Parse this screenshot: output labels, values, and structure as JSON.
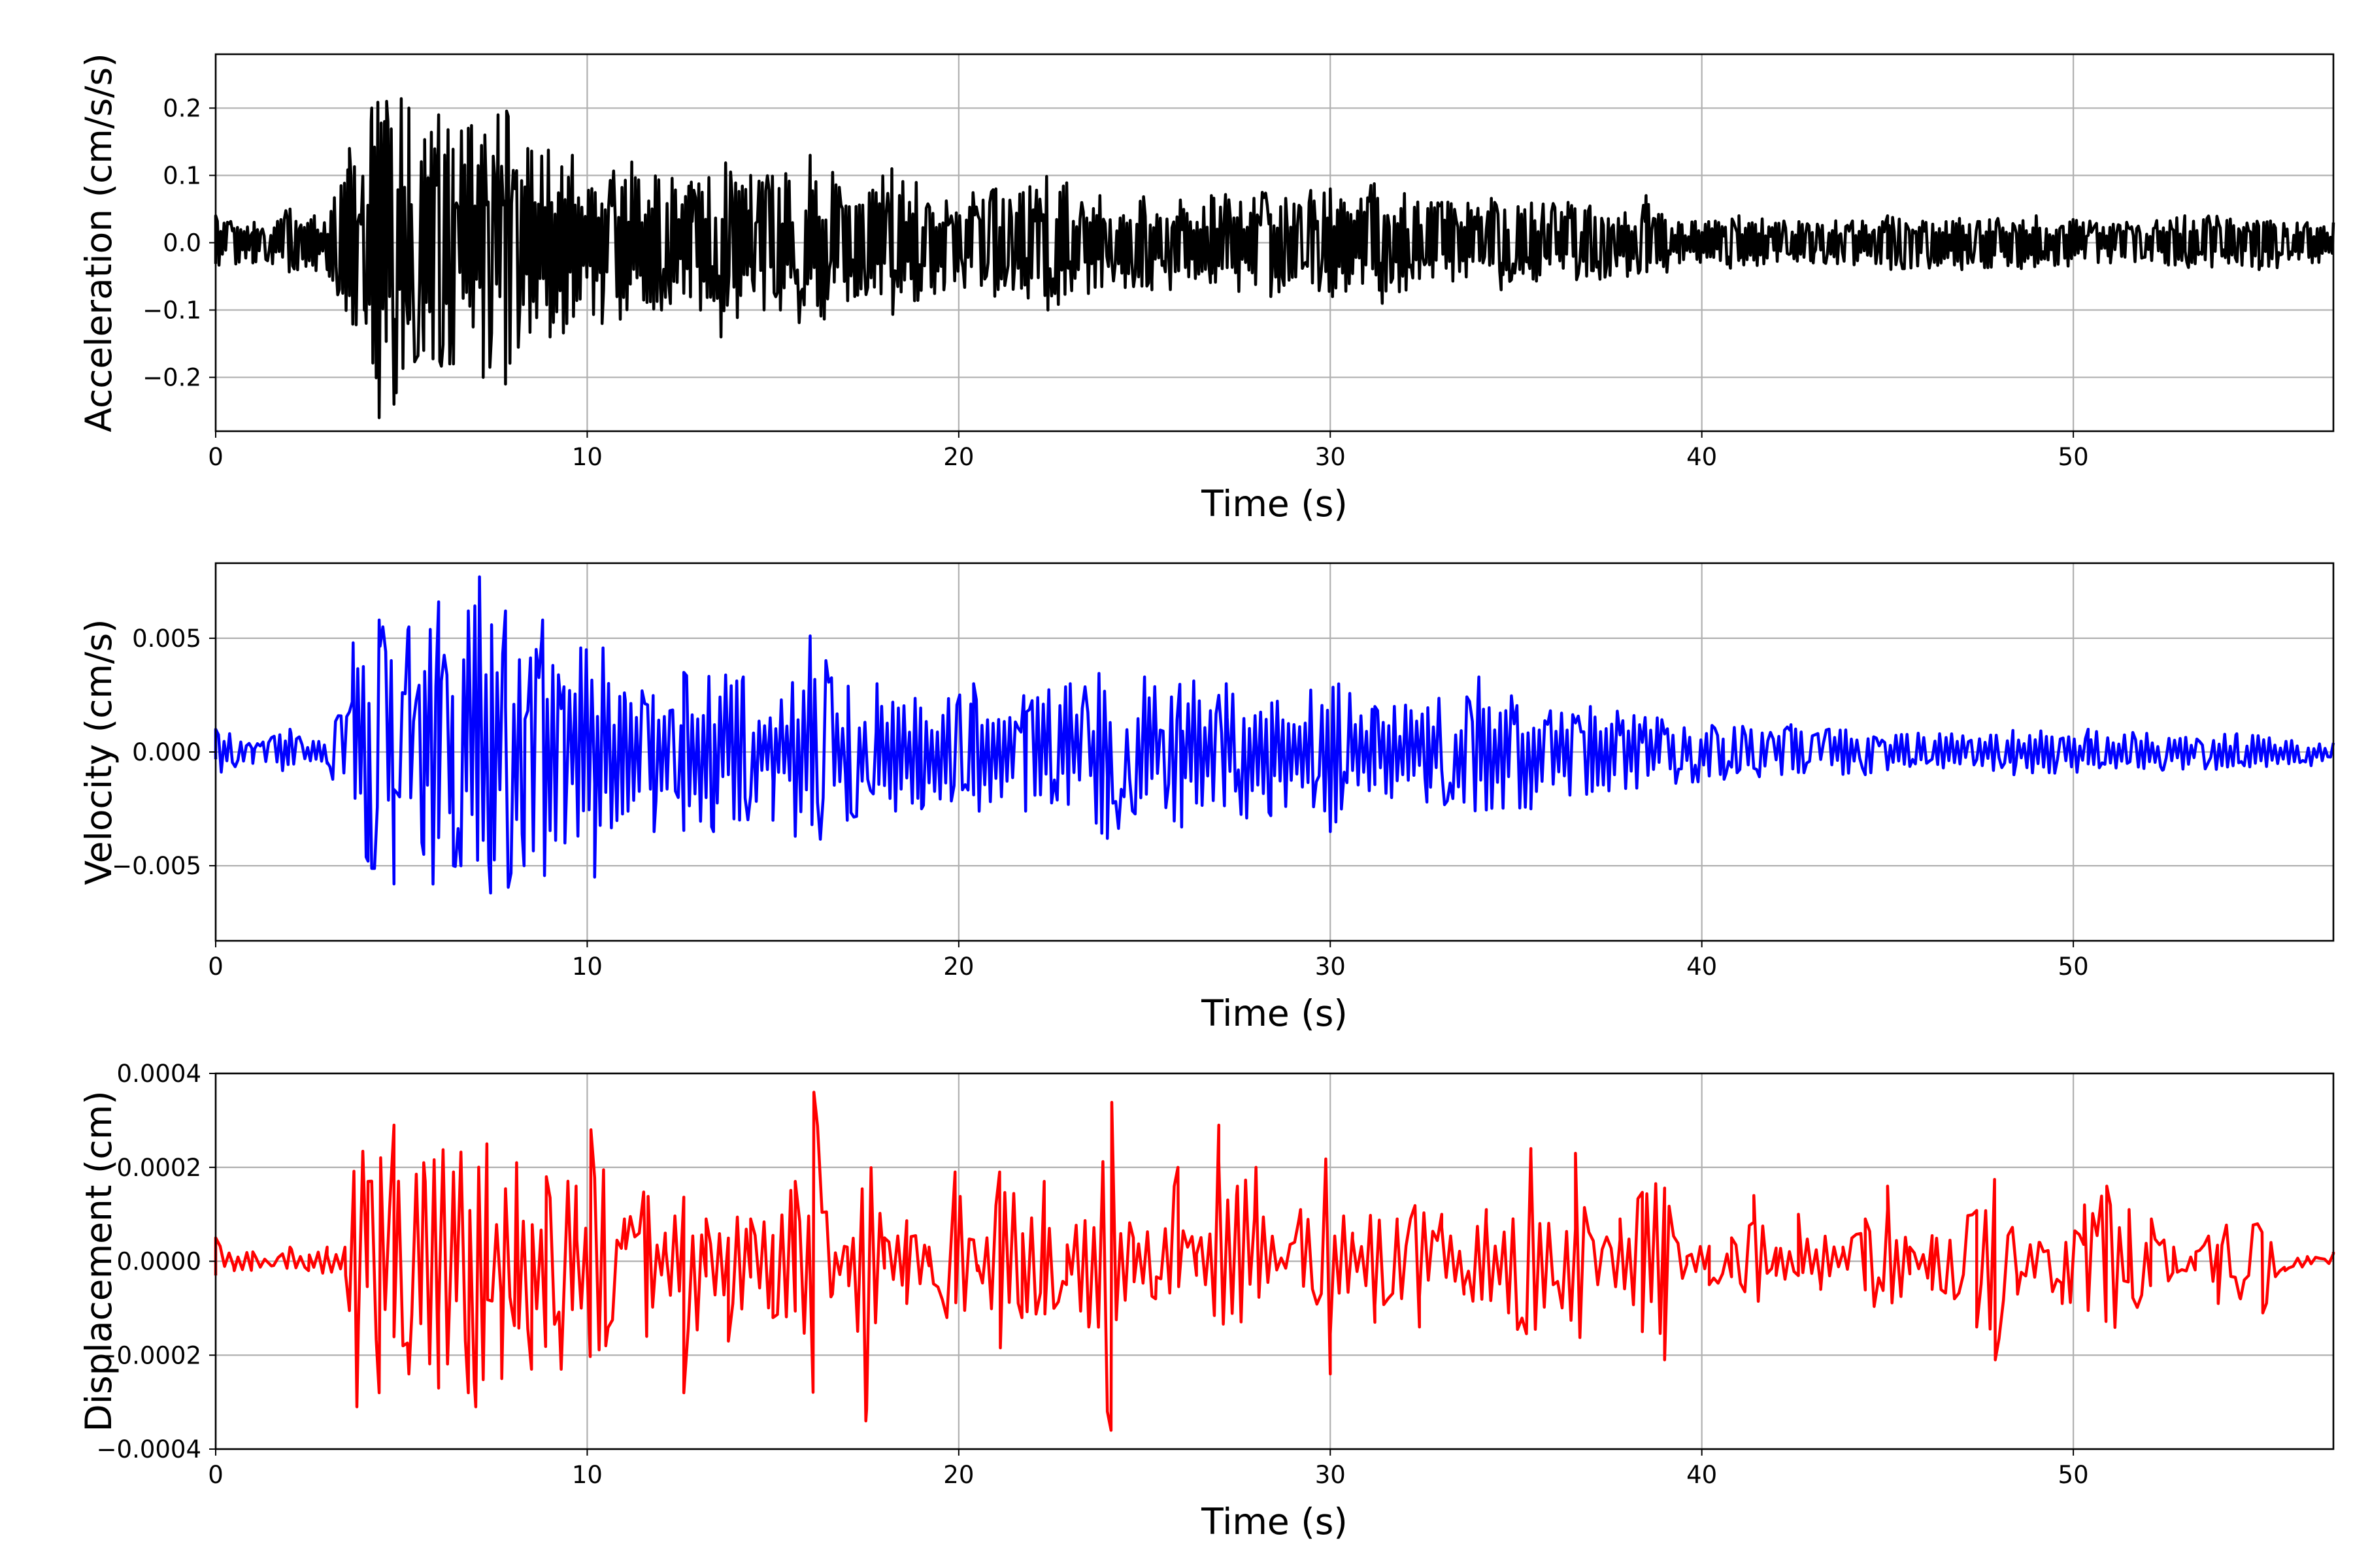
{
  "chart_data": [
    {
      "type": "line",
      "xlabel": "Time (s)",
      "ylabel": "Acceleration (cm/s/s)",
      "xlim": [
        0,
        57
      ],
      "ylim": [
        -0.28,
        0.28
      ],
      "x_ticks": [
        0,
        10,
        20,
        30,
        40,
        50
      ],
      "x_tick_labels": [
        "0",
        "10",
        "20",
        "30",
        "40",
        "50"
      ],
      "y_ticks": [
        -0.2,
        -0.1,
        0.0,
        0.1,
        0.2
      ],
      "y_tick_labels": [
        "−0.2",
        "−0.1",
        "0.0",
        "0.1",
        "0.2"
      ],
      "grid": true,
      "series": [
        {
          "color": "#000000",
          "x": [
            0,
            1,
            2,
            3,
            3.6,
            4,
            4.2,
            4.4,
            4.6,
            4.8,
            5.2,
            5.6,
            6.0,
            6.4,
            6.8,
            7.2,
            7.6,
            7.8,
            8.4,
            9.0,
            9.6,
            10.4,
            11.2,
            12.0,
            12.8,
            13.6,
            14.4,
            15.2,
            16.0,
            17.2,
            18.2,
            19.6,
            21.0,
            22.4,
            23.8,
            25.2,
            26.8,
            28.4,
            30.0,
            31.4,
            33.0,
            34.6,
            36.4,
            38.0,
            38.5,
            39.4,
            41.0,
            43.0,
            45.0,
            47.0,
            49.0,
            51.0,
            53.0,
            55.0,
            57.0
          ],
          "y": [
            0.04,
            -0.03,
            0.05,
            -0.04,
            0.14,
            -0.1,
            0.2,
            -0.26,
            0.21,
            -0.24,
            0.2,
            -0.16,
            0.19,
            -0.18,
            0.17,
            -0.2,
            0.19,
            -0.21,
            0.14,
            -0.14,
            0.13,
            -0.12,
            0.12,
            -0.1,
            0.09,
            -0.14,
            0.1,
            -0.1,
            0.13,
            -0.08,
            0.11,
            -0.07,
            0.08,
            -0.1,
            0.07,
            -0.07,
            0.07,
            -0.08,
            0.08,
            -0.09,
            0.06,
            -0.07,
            0.06,
            -0.05,
            0.07,
            -0.03,
            0.04,
            -0.03,
            0.04,
            -0.04,
            0.04,
            -0.03,
            0.04,
            -0.04,
            0.03
          ]
        }
      ]
    },
    {
      "type": "line",
      "xlabel": "Time (s)",
      "ylabel": "Velocity (cm/s)",
      "xlim": [
        0,
        57
      ],
      "ylim": [
        -0.0083,
        0.0083
      ],
      "x_ticks": [
        0,
        10,
        20,
        30,
        40,
        50
      ],
      "x_tick_labels": [
        "0",
        "10",
        "20",
        "30",
        "40",
        "50"
      ],
      "y_ticks": [
        -0.005,
        0.0,
        0.005
      ],
      "y_tick_labels": [
        "−0.005",
        "0.000",
        "0.005"
      ],
      "grid": true,
      "series": [
        {
          "color": "#0000ff",
          "x": [
            0,
            1,
            2,
            3,
            3.7,
            4.1,
            4.4,
            4.8,
            5.2,
            5.6,
            6.0,
            6.4,
            6.8,
            7.1,
            7.4,
            7.8,
            8.3,
            8.8,
            9.4,
            10.2,
            11.0,
            11.8,
            12.6,
            13.4,
            14.2,
            15.0,
            16.0,
            17.0,
            17.8,
            19.0,
            20.4,
            21.8,
            23.0,
            24.0,
            25.0,
            26.0,
            27.2,
            28.4,
            30.0,
            31.2,
            32.6,
            34.0,
            35.4,
            37.0,
            38.8,
            40.6,
            42.4,
            44.4,
            46.4,
            48.4,
            50.4,
            52.4,
            54.4,
            56.4,
            57.0
          ],
          "y": [
            0.001,
            -0.0005,
            0.001,
            -0.0005,
            0.0048,
            -0.0048,
            0.0058,
            -0.0058,
            0.0055,
            -0.0045,
            0.0066,
            -0.005,
            0.0062,
            0.0077,
            -0.0062,
            0.0062,
            -0.005,
            0.0058,
            -0.004,
            -0.0055,
            0.0026,
            -0.0035,
            0.0035,
            -0.0035,
            0.0033,
            -0.003,
            0.0051,
            -0.003,
            0.003,
            -0.0025,
            0.003,
            -0.0026,
            0.003,
            -0.0038,
            0.0033,
            -0.0033,
            0.003,
            -0.0028,
            -0.0035,
            0.002,
            -0.0022,
            0.0033,
            -0.0025,
            0.002,
            0.0015,
            -0.0012,
            0.0012,
            -0.001,
            0.0008,
            -0.001,
            0.001,
            -0.0008,
            0.0008,
            -0.0006,
            0.0004
          ]
        }
      ]
    },
    {
      "type": "line",
      "xlabel": "Time (s)",
      "ylabel": "Displacement (cm)",
      "xlim": [
        0,
        57
      ],
      "ylim": [
        -0.0004,
        0.0004
      ],
      "x_ticks": [
        0,
        10,
        20,
        30,
        40,
        50
      ],
      "x_tick_labels": [
        "0",
        "10",
        "20",
        "30",
        "40",
        "50"
      ],
      "y_ticks": [
        -0.0004,
        -0.0002,
        0.0,
        0.0002,
        0.0004
      ],
      "y_tick_labels": [
        "−0.0004",
        "−0.0002",
        "0.0000",
        "0.0002",
        "0.0004"
      ],
      "grid": true,
      "series": [
        {
          "color": "#ff0000",
          "x": [
            0,
            0.5,
            1,
            1.5,
            2,
            2.5,
            3,
            3.5,
            3.8,
            4.1,
            4.4,
            4.8,
            5.2,
            5.6,
            6.0,
            6.4,
            6.8,
            7.0,
            7.3,
            7.7,
            8.1,
            8.5,
            8.9,
            9.3,
            9.7,
            10.1,
            10.5,
            11.0,
            11.6,
            12.1,
            12.6,
            13.2,
            13.8,
            14.4,
            15.0,
            15.6,
            16.1,
            16.6,
            17.0,
            17.5,
            18.0,
            18.6,
            19.2,
            19.9,
            20.5,
            21.1,
            21.7,
            22.3,
            22.9,
            23.5,
            24.1,
            24.7,
            25.3,
            25.9,
            26.4,
            27.0,
            27.5,
            28.0,
            28.6,
            29.2,
            30.0,
            30.6,
            31.2,
            31.8,
            32.4,
            33.0,
            33.6,
            34.2,
            34.8,
            35.4,
            36.0,
            36.6,
            37.2,
            37.8,
            38.4,
            39.0,
            39.6,
            40.2,
            40.8,
            41.4,
            42.0,
            42.6,
            43.2,
            43.8,
            44.4,
            45.0,
            45.6,
            46.2,
            46.8,
            47.4,
            47.9,
            48.5,
            49.1,
            49.7,
            50.3,
            50.9,
            51.5,
            52.1,
            52.7,
            53.3,
            53.9,
            54.5,
            55.1,
            55.7,
            56.3,
            57.0
          ],
          "y": [
            5e-05,
            -2e-05,
            2e-05,
            -1e-05,
            3e-05,
            -2e-05,
            3e-05,
            -3e-05,
            -0.00031,
            0.00017,
            -0.00028,
            0.00029,
            -0.00024,
            0.00021,
            -0.00027,
            0.00019,
            -0.00028,
            -0.00031,
            0.00025,
            -0.00025,
            0.00021,
            -0.00023,
            0.00018,
            -0.00023,
            0.00016,
            0.00028,
            -0.00018,
            9e-05,
            -0.00016,
            6e-05,
            -0.00028,
            9e-05,
            -0.00017,
            9e-05,
            -0.00012,
            0.00017,
            0.00036,
            -7e-05,
            3e-05,
            -0.00034,
            5e-05,
            -9e-05,
            3e-05,
            0.00019,
            -2e-05,
            0.00019,
            -0.00012,
            0.00017,
            -5e-05,
            -0.00014,
            -0.00036,
            5e-05,
            -8e-05,
            0.0002,
            -3e-05,
            0.00029,
            0.00016,
            0.0002,
            -1e-05,
            0.00011,
            -0.00024,
            6e-05,
            -0.00013,
            9e-05,
            -0.00014,
            0.0001,
            -7e-05,
            0.00011,
            -0.00011,
            0.00024,
            -5e-05,
            0.00023,
            -5e-05,
            9e-05,
            -0.00015,
            -0.00021,
            1e-05,
            -5e-05,
            5e-05,
            0.00014,
            -3e-05,
            0.0001,
            -6e-05,
            3e-05,
            9e-05,
            0.00016,
            3e-05,
            -6e-05,
            -8e-05,
            -0.00014,
            -0.00021,
            -7e-05,
            4e-05,
            -9e-05,
            0.00012,
            0.00016,
            0.00011,
            9e-05,
            3e-05,
            2e-05,
            -9e-05,
            -8e-05,
            -0.00011,
            -2e-05,
            1e-05,
            2e-05
          ]
        }
      ]
    }
  ]
}
